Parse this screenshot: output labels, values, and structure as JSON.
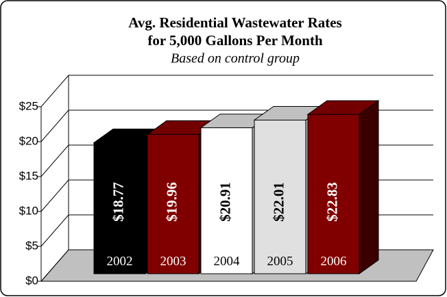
{
  "chart_data": {
    "type": "bar3d",
    "title": [
      "Avg. Residential Wastewater Rates",
      "for 5,000 Gallons Per Month"
    ],
    "subtitle": "Based on control group",
    "categories": [
      "2002",
      "2003",
      "2004",
      "2005",
      "2006"
    ],
    "values": [
      18.77,
      19.96,
      20.91,
      22.01,
      22.83
    ],
    "value_labels": [
      "$18.77",
      "$19.96",
      "$20.91",
      "$22.01",
      "$22.83"
    ],
    "colors": [
      "#000000",
      "#800000",
      "#ffffff",
      "#e0e0e0",
      "#800000"
    ],
    "ylim": [
      0,
      25
    ],
    "yticks": [
      {
        "value": 0,
        "label": "$0"
      },
      {
        "value": 5,
        "label": "$5"
      },
      {
        "value": 10,
        "label": "$10"
      },
      {
        "value": 15,
        "label": "$15"
      },
      {
        "value": 20,
        "label": "$20"
      },
      {
        "value": 25,
        "label": "$25"
      }
    ],
    "grid": true
  }
}
